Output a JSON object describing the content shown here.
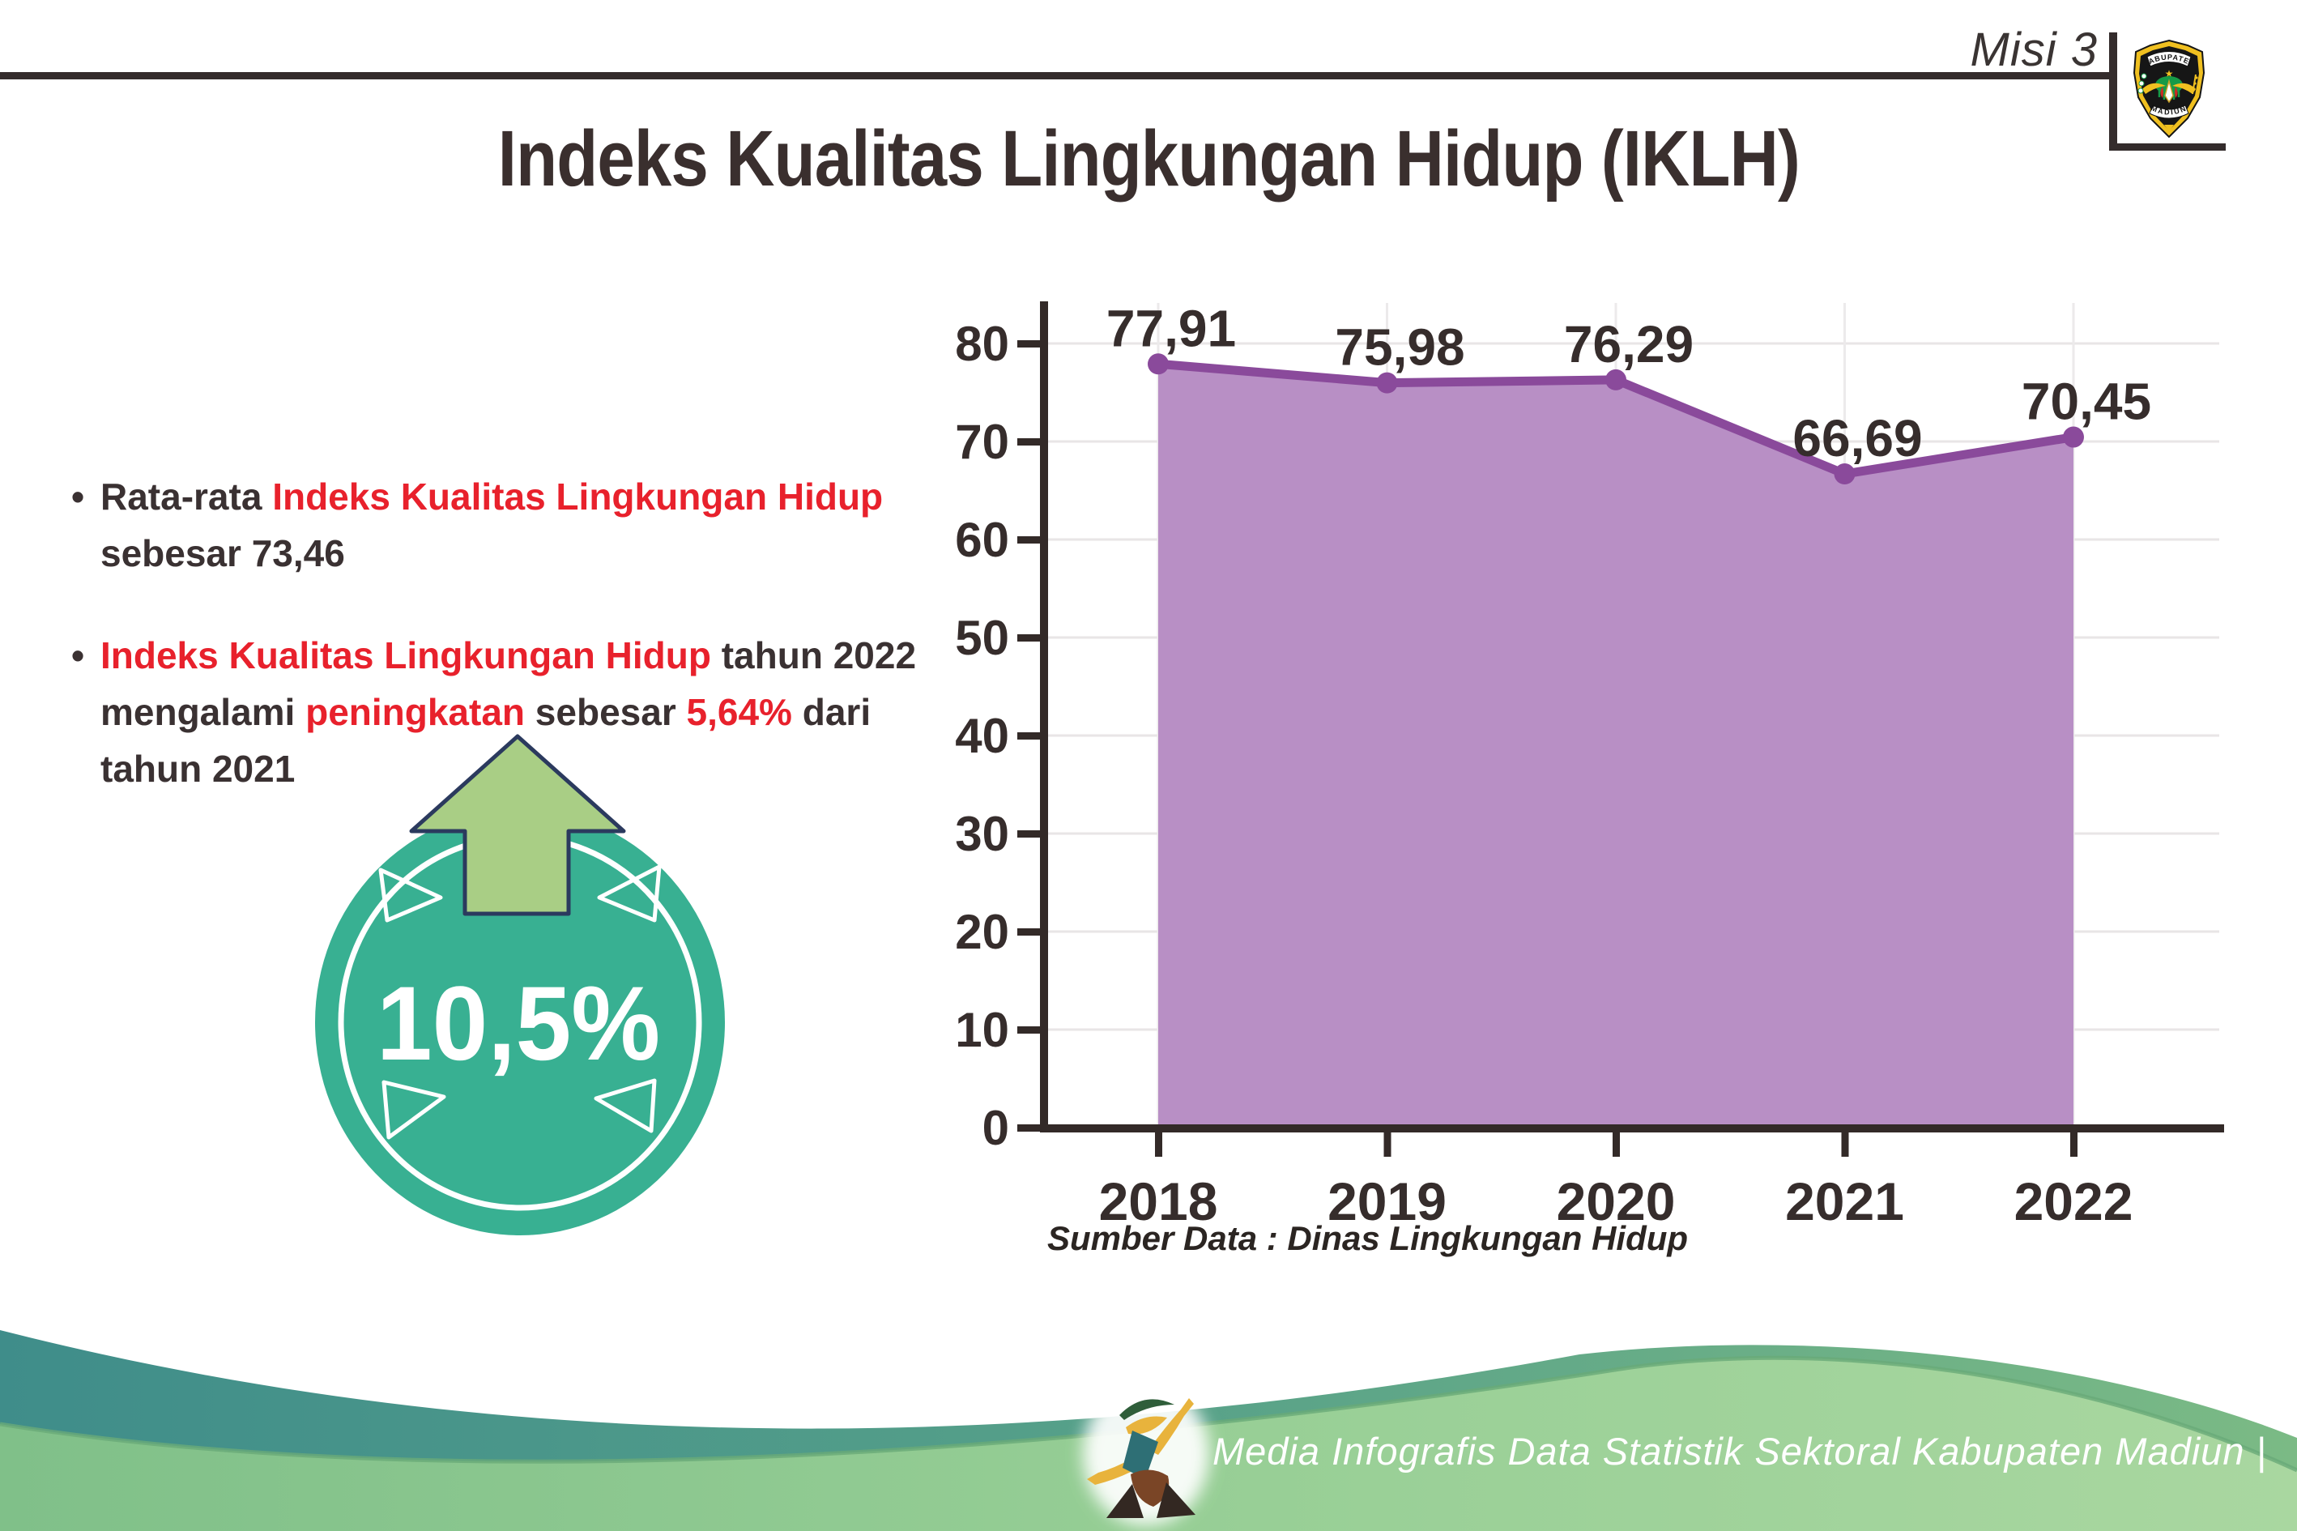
{
  "header": {
    "mission_label": "Misi 3",
    "title": "Indeks Kualitas Lingkungan Hidup (IKLH)"
  },
  "logo": {
    "top_text": "KABUPATEN",
    "bottom_text": "MADIUN"
  },
  "bullets": {
    "bullet_char": "•",
    "items": [
      {
        "lines": [
          [
            {
              "t": "Rata-rata ",
              "c": "dark"
            },
            {
              "t": "Indeks Kualitas Lingkungan Hidup",
              "c": "red"
            }
          ],
          [
            {
              "t": "sebesar 73,46",
              "c": "dark"
            }
          ]
        ]
      },
      {
        "lines": [
          [
            {
              "t": "Indeks Kualitas Lingkungan Hidup",
              "c": "red"
            },
            {
              "t": " tahun 2022",
              "c": "dark"
            }
          ],
          [
            {
              "t": "mengalami ",
              "c": "dark"
            },
            {
              "t": "peningkatan",
              "c": "red"
            },
            {
              "t": " sebesar ",
              "c": "dark"
            },
            {
              "t": "5,64%",
              "c": "red"
            },
            {
              "t": " dari",
              "c": "dark"
            }
          ],
          [
            {
              "t": "tahun 2021",
              "c": "dark"
            }
          ]
        ]
      }
    ]
  },
  "badge": {
    "value": "10,5%",
    "icon": "up-arrow-icon",
    "circle_color": "#38b092",
    "arrow_color": "#a9ce85",
    "arrow_outline": "#2b3a5e"
  },
  "chart_data": {
    "type": "area",
    "categories": [
      "2018",
      "2019",
      "2020",
      "2021",
      "2022"
    ],
    "values": [
      77.91,
      75.98,
      76.29,
      66.69,
      70.45
    ],
    "value_labels": [
      "77,91",
      "75,98",
      "76,29",
      "66,69",
      "70,45"
    ],
    "title": "",
    "xlabel": "",
    "ylabel": "",
    "ylim": [
      0,
      80
    ],
    "ytick_step": 10,
    "grid": true,
    "legend": "none",
    "line_color": "#8a4a9b",
    "fill_color": "#b88fc5",
    "axis_color": "#332a28",
    "grid_color": "#e8e5e6",
    "label_color": "#362d2c",
    "source_note": "Sumber Data : Dinas Lingkungan Hidup"
  },
  "footer": {
    "credit": "Media Infografis Data Statistik Sektoral Kabupaten Madiun |",
    "mascot": "dancer-mascot-icon",
    "wave_back_colors": [
      "#3f8d8a",
      "#57a189",
      "#7bba85"
    ],
    "wave_front_colors": [
      "#80c089",
      "#98cf96",
      "#a9d7a0"
    ]
  }
}
